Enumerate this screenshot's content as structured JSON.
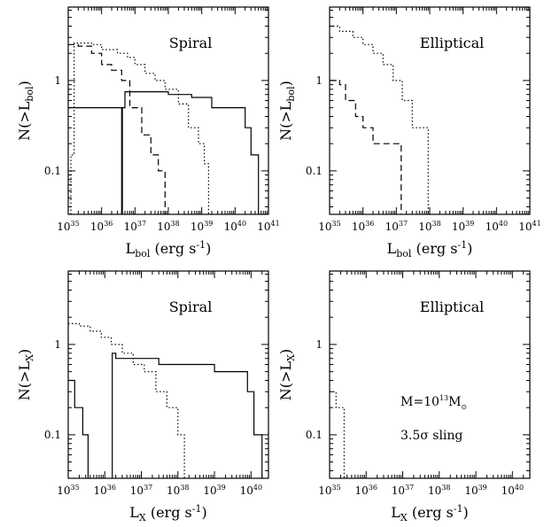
{
  "chart_data": [
    {
      "type": "line",
      "panel": "top-left",
      "xscale": "log",
      "yscale": "log",
      "xlim": [
        1e+35,
        1e+41
      ],
      "ylim": [
        0.033,
        6.5
      ],
      "panel_label": "Spiral",
      "xlabel": {
        "main": "L",
        "sub": "bol",
        "rest": " (erg s",
        "sup": "-1",
        "close": ")"
      },
      "ylabel": {
        "main": "N(>L",
        "sub": "bol",
        "close": ")"
      },
      "xticks": [
        {
          "base": "10",
          "exp": "35",
          "value": 1e+35
        },
        {
          "base": "10",
          "exp": "36",
          "value": 1e+36
        },
        {
          "base": "10",
          "exp": "37",
          "value": 1e+37
        },
        {
          "base": "10",
          "exp": "38",
          "value": 1e+38
        },
        {
          "base": "10",
          "exp": "39",
          "value": 1e+39
        },
        {
          "base": "10",
          "exp": "40",
          "value": 1e+40
        },
        {
          "base": "10",
          "exp": "41",
          "value": 1e+41
        }
      ],
      "yticks": [
        {
          "label": "0.1",
          "value": 0.1
        },
        {
          "label": "1",
          "value": 1
        }
      ],
      "series": [
        {
          "style": "solid",
          "points": [
            [
              1e+35,
              0.5
            ],
            [
              4.2e+36,
              0.5
            ],
            [
              4.2e+36,
              0.03
            ]
          ]
        },
        {
          "style": "solid",
          "points": [
            [
              4e+36,
              0.03
            ],
            [
              4e+36,
              0.5
            ],
            [
              5e+36,
              0.5
            ],
            [
              5e+36,
              0.75
            ],
            [
              1e+38,
              0.75
            ],
            [
              1e+38,
              0.7
            ],
            [
              5e+38,
              0.7
            ],
            [
              5e+38,
              0.65
            ],
            [
              2e+39,
              0.65
            ],
            [
              2e+39,
              0.5
            ],
            [
              2e+40,
              0.5
            ],
            [
              2e+40,
              0.3
            ],
            [
              3e+40,
              0.3
            ],
            [
              3e+40,
              0.15
            ],
            [
              5e+40,
              0.15
            ],
            [
              5e+40,
              0.03
            ]
          ]
        },
        {
          "style": "dashed",
          "points": [
            [
              1e+35,
              2.5
            ],
            [
              2e+35,
              2.5
            ],
            [
              2e+35,
              2.4
            ],
            [
              5e+35,
              2.4
            ],
            [
              5e+35,
              2
            ],
            [
              1e+36,
              2
            ],
            [
              1e+36,
              1.5
            ],
            [
              2e+36,
              1.5
            ],
            [
              2e+36,
              1.3
            ],
            [
              4e+36,
              1.3
            ],
            [
              4e+36,
              1
            ],
            [
              7e+36,
              1
            ],
            [
              7e+36,
              0.5
            ],
            [
              1.6e+37,
              0.5
            ],
            [
              1.6e+37,
              0.25
            ],
            [
              3e+37,
              0.25
            ],
            [
              3e+37,
              0.15
            ],
            [
              5e+37,
              0.15
            ],
            [
              5e+37,
              0.1
            ],
            [
              8e+37,
              0.1
            ],
            [
              8e+37,
              0.03
            ]
          ]
        },
        {
          "style": "dotted",
          "points": [
            [
              1.2e+35,
              0.03
            ],
            [
              1.2e+35,
              0.15
            ],
            [
              1.5e+35,
              0.15
            ],
            [
              1.5e+35,
              2.6
            ],
            [
              5e+35,
              2.6
            ],
            [
              5e+35,
              2.5
            ],
            [
              1e+36,
              2.5
            ],
            [
              1e+36,
              2.2
            ],
            [
              3e+36,
              2.2
            ],
            [
              3e+36,
              2
            ],
            [
              6e+36,
              2
            ],
            [
              6e+36,
              1.8
            ],
            [
              1e+37,
              1.8
            ],
            [
              1e+37,
              1.5
            ],
            [
              2e+37,
              1.5
            ],
            [
              2e+37,
              1.2
            ],
            [
              4e+37,
              1.2
            ],
            [
              4e+37,
              1
            ],
            [
              8e+37,
              1
            ],
            [
              8e+37,
              0.8
            ],
            [
              2e+38,
              0.8
            ],
            [
              2e+38,
              0.55
            ],
            [
              4e+38,
              0.55
            ],
            [
              4e+38,
              0.3
            ],
            [
              8e+38,
              0.3
            ],
            [
              8e+38,
              0.2
            ],
            [
              1.2e+39,
              0.2
            ],
            [
              1.2e+39,
              0.12
            ],
            [
              1.6e+39,
              0.12
            ],
            [
              1.6e+39,
              0.03
            ]
          ]
        }
      ]
    },
    {
      "type": "line",
      "panel": "top-right",
      "xscale": "log",
      "yscale": "log",
      "xlim": [
        1e+35,
        1e+41
      ],
      "ylim": [
        0.033,
        6.5
      ],
      "panel_label": "Elliptical",
      "xlabel": {
        "main": "L",
        "sub": "bol",
        "rest": " (erg s",
        "sup": "-1",
        "close": ")"
      },
      "ylabel": {
        "main": "N(>L",
        "sub": "bol",
        "close": ")"
      },
      "xticks": [
        {
          "base": "10",
          "exp": "35",
          "value": 1e+35
        },
        {
          "base": "10",
          "exp": "36",
          "value": 1e+36
        },
        {
          "base": "10",
          "exp": "37",
          "value": 1e+37
        },
        {
          "base": "10",
          "exp": "38",
          "value": 1e+38
        },
        {
          "base": "10",
          "exp": "39",
          "value": 1e+39
        },
        {
          "base": "10",
          "exp": "40",
          "value": 1e+40
        },
        {
          "base": "10",
          "exp": "41",
          "value": 1e+41
        }
      ],
      "yticks": [
        {
          "label": "0.1",
          "value": 0.1
        },
        {
          "label": "1",
          "value": 1
        }
      ],
      "series": [
        {
          "style": "dashed",
          "points": [
            [
              1e+35,
              1
            ],
            [
              2e+35,
              1
            ],
            [
              2e+35,
              0.9
            ],
            [
              3e+35,
              0.9
            ],
            [
              3e+35,
              0.6
            ],
            [
              6e+35,
              0.6
            ],
            [
              6e+35,
              0.4
            ],
            [
              1e+36,
              0.4
            ],
            [
              1e+36,
              0.3
            ],
            [
              2e+36,
              0.3
            ],
            [
              2e+36,
              0.2
            ],
            [
              5e+36,
              0.2
            ],
            [
              5e+36,
              0.2
            ],
            [
              1.4e+37,
              0.2
            ],
            [
              1.4e+37,
              0.03
            ]
          ]
        },
        {
          "style": "dotted",
          "points": [
            [
              1e+35,
              4
            ],
            [
              2e+35,
              4
            ],
            [
              2e+35,
              3.5
            ],
            [
              5e+35,
              3.5
            ],
            [
              5e+35,
              3
            ],
            [
              1e+36,
              3
            ],
            [
              1e+36,
              2.5
            ],
            [
              2e+36,
              2.5
            ],
            [
              2e+36,
              2
            ],
            [
              4e+36,
              2
            ],
            [
              4e+36,
              1.5
            ],
            [
              8e+36,
              1.5
            ],
            [
              8e+36,
              1
            ],
            [
              1.5e+37,
              1
            ],
            [
              1.5e+37,
              0.6
            ],
            [
              3e+37,
              0.6
            ],
            [
              3e+37,
              0.3
            ],
            [
              9e+37,
              0.3
            ],
            [
              9e+37,
              0.03
            ]
          ]
        }
      ]
    },
    {
      "type": "line",
      "panel": "bottom-left",
      "xscale": "log",
      "yscale": "log",
      "xlim": [
        1e+35,
        3e+40
      ],
      "ylim": [
        0.033,
        6.5
      ],
      "panel_label": "Spiral",
      "xlabel": {
        "main": "L",
        "sub": "X",
        "rest": " (erg s",
        "sup": "-1",
        "close": ")"
      },
      "ylabel": {
        "main": "N(>L",
        "sub": "X",
        "close": ")"
      },
      "xticks": [
        {
          "base": "10",
          "exp": "35",
          "value": 1e+35
        },
        {
          "base": "10",
          "exp": "36",
          "value": 1e+36
        },
        {
          "base": "10",
          "exp": "37",
          "value": 1e+37
        },
        {
          "base": "10",
          "exp": "38",
          "value": 1e+38
        },
        {
          "base": "10",
          "exp": "39",
          "value": 1e+39
        },
        {
          "base": "10",
          "exp": "40",
          "value": 1e+40
        }
      ],
      "yticks": [
        {
          "label": "0.1",
          "value": 0.1
        },
        {
          "label": "1",
          "value": 1
        }
      ],
      "series": [
        {
          "style": "solid",
          "points": [
            [
              1e+35,
              0.4
            ],
            [
              1.5e+35,
              0.4
            ],
            [
              1.5e+35,
              0.2
            ],
            [
              2.5e+35,
              0.2
            ],
            [
              2.5e+35,
              0.1
            ],
            [
              3.5e+35,
              0.1
            ],
            [
              3.5e+35,
              0.03
            ]
          ]
        },
        {
          "style": "solid",
          "points": [
            [
              1.6e+36,
              0.03
            ],
            [
              1.6e+36,
              0.8
            ],
            [
              2e+36,
              0.8
            ],
            [
              2e+36,
              0.7
            ],
            [
              3e+37,
              0.7
            ],
            [
              3e+37,
              0.6
            ],
            [
              1e+39,
              0.6
            ],
            [
              1e+39,
              0.5
            ],
            [
              8e+39,
              0.5
            ],
            [
              8e+39,
              0.3
            ],
            [
              1.2e+40,
              0.3
            ],
            [
              1.2e+40,
              0.1
            ],
            [
              2e+40,
              0.1
            ],
            [
              2e+40,
              0.03
            ]
          ]
        },
        {
          "style": "dotted",
          "points": [
            [
              1e+35,
              1.7
            ],
            [
              2e+35,
              1.7
            ],
            [
              2e+35,
              1.6
            ],
            [
              4e+35,
              1.6
            ],
            [
              4e+35,
              1.4
            ],
            [
              8e+35,
              1.4
            ],
            [
              8e+35,
              1.2
            ],
            [
              1.5e+36,
              1.2
            ],
            [
              1.5e+36,
              1
            ],
            [
              3e+36,
              1
            ],
            [
              3e+36,
              0.8
            ],
            [
              6e+36,
              0.8
            ],
            [
              6e+36,
              0.6
            ],
            [
              1.2e+37,
              0.6
            ],
            [
              1.2e+37,
              0.5
            ],
            [
              2.5e+37,
              0.5
            ],
            [
              2.5e+37,
              0.3
            ],
            [
              5e+37,
              0.3
            ],
            [
              5e+37,
              0.2
            ],
            [
              1e+38,
              0.2
            ],
            [
              1e+38,
              0.1
            ],
            [
              1.5e+38,
              0.1
            ],
            [
              1.5e+38,
              0.03
            ]
          ]
        }
      ]
    },
    {
      "type": "line",
      "panel": "bottom-right",
      "xscale": "log",
      "yscale": "log",
      "xlim": [
        1e+35,
        3e+40
      ],
      "ylim": [
        0.033,
        6.5
      ],
      "panel_label": "Elliptical",
      "annotations": {
        "mass_main": "M=10",
        "mass_exp": "13",
        "mass_unit": "M",
        "mass_sun": "⊙",
        "sling": "3.5σ sling"
      },
      "xlabel": {
        "main": "L",
        "sub": "X",
        "rest": " (erg s",
        "sup": "-1",
        "close": ")"
      },
      "ylabel": {
        "main": "N(>L",
        "sub": "X",
        "close": ")"
      },
      "xticks": [
        {
          "base": "10",
          "exp": "35",
          "value": 1e+35
        },
        {
          "base": "10",
          "exp": "36",
          "value": 1e+36
        },
        {
          "base": "10",
          "exp": "37",
          "value": 1e+37
        },
        {
          "base": "10",
          "exp": "38",
          "value": 1e+38
        },
        {
          "base": "10",
          "exp": "39",
          "value": 1e+39
        },
        {
          "base": "10",
          "exp": "40",
          "value": 1e+40
        }
      ],
      "yticks": [
        {
          "label": "0.1",
          "value": 0.1
        },
        {
          "label": "1",
          "value": 1
        }
      ],
      "series": [
        {
          "style": "dotted",
          "points": [
            [
              1e+35,
              0.3
            ],
            [
              1.5e+35,
              0.3
            ],
            [
              1.5e+35,
              0.2
            ],
            [
              2.5e+35,
              0.2
            ],
            [
              2.5e+35,
              0.03
            ]
          ]
        }
      ]
    }
  ]
}
